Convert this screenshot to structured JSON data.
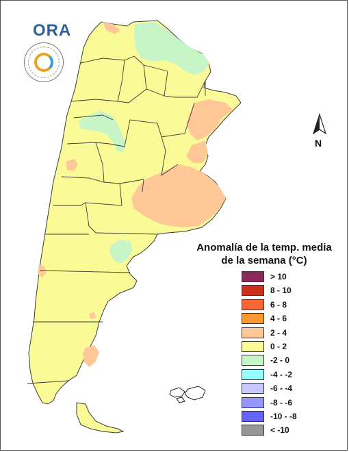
{
  "logo": {
    "text": "ORA",
    "seal_text": "SERVICIO METEOROLÓGICO NACIONAL ARGENTINA"
  },
  "compass": {
    "label": "N"
  },
  "legend": {
    "title_line1": "Anomalía de la temp. media",
    "title_line2": "de la semana (°C)",
    "items": [
      {
        "label": "> 10",
        "color": "#8b2a5a"
      },
      {
        "label": "8 - 10",
        "color": "#c8301a"
      },
      {
        "label": "6 - 8",
        "color": "#ff6633"
      },
      {
        "label": "4 - 6",
        "color": "#ff9933"
      },
      {
        "label": "2 - 4",
        "color": "#ffc896"
      },
      {
        "label": "0 - 2",
        "color": "#fafa96"
      },
      {
        "label": "-2 - 0",
        "color": "#c8f5c8"
      },
      {
        "label": "-4 - -2",
        "color": "#96ffff"
      },
      {
        "label": "-6 - -4",
        "color": "#c8c8ff"
      },
      {
        "label": "-8 - -6",
        "color": "#9696ff"
      },
      {
        "label": "-10 - -8",
        "color": "#6464ff"
      },
      {
        "label": "< -10",
        "color": "#969696"
      }
    ]
  },
  "colors": {
    "base": "#fafa96",
    "warm": "#ffc896",
    "cool": "#c8f5c8",
    "border": "#3a3a3a"
  }
}
